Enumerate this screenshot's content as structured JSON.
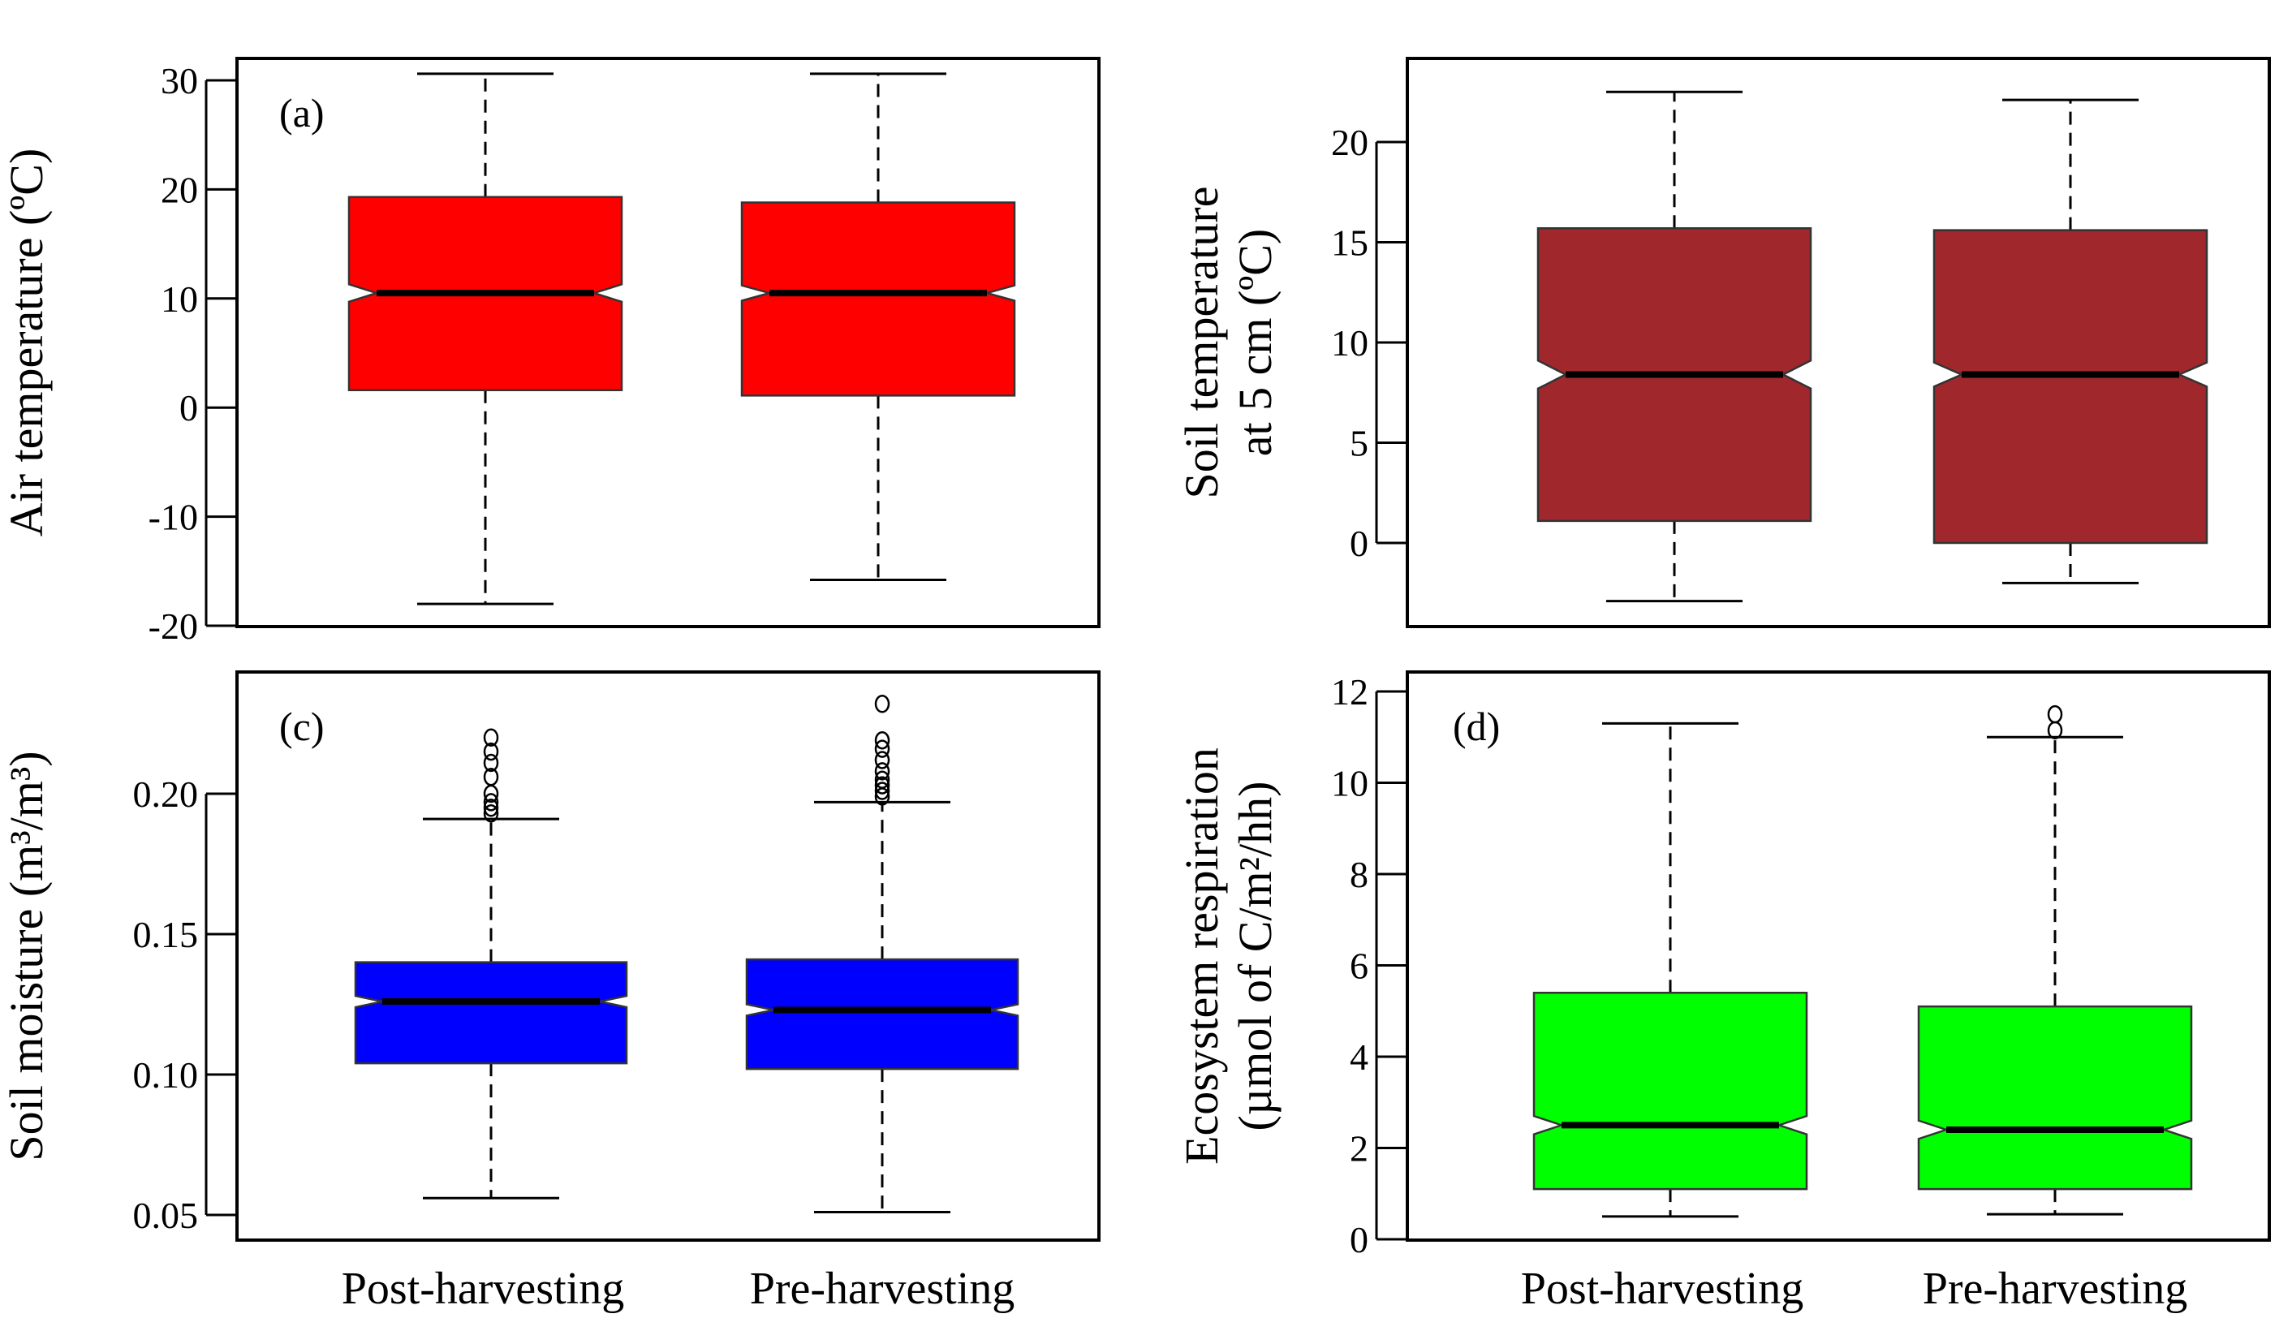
{
  "chart_data": [
    {
      "id": "a",
      "type": "boxplot",
      "panel_label": "(a)",
      "ylabel": "Air temperature (ºC)",
      "ylim": [
        -20,
        32
      ],
      "yticks": [
        -20,
        -10,
        0,
        10,
        20,
        30
      ],
      "tick_labels": [
        "-20",
        "-10",
        "0",
        "10",
        "20",
        "30"
      ],
      "fill": "#ff0000",
      "categories": [
        "Post-harvesting",
        "Pre-harvesting"
      ],
      "boxes": [
        {
          "whisker_low": -18,
          "q1": 1.6,
          "median": 10.5,
          "q3": 19.3,
          "whisker_high": 30.6,
          "notch_low": 9.7,
          "notch_high": 11.3,
          "outliers": []
        },
        {
          "whisker_low": -15.8,
          "q1": 1.1,
          "median": 10.5,
          "q3": 18.8,
          "whisker_high": 30.6,
          "notch_low": 9.8,
          "notch_high": 11.2,
          "outliers": []
        }
      ]
    },
    {
      "id": "b",
      "type": "boxplot",
      "panel_label": "",
      "ylabel_lines": [
        "Soil temperature",
        "at 5 cm (ºC)"
      ],
      "ylim": [
        -4,
        24.5
      ],
      "yticks": [
        0,
        5,
        10,
        15,
        20
      ],
      "tick_labels": [
        "0",
        "5",
        "10",
        "15",
        "20"
      ],
      "fill": "#a0282c",
      "categories": [
        "Post-harvesting",
        "Pre-harvesting"
      ],
      "boxes": [
        {
          "whisker_low": -2.9,
          "q1": 1.1,
          "median": 8.4,
          "q3": 15.7,
          "whisker_high": 22.5,
          "notch_low": 7.7,
          "notch_high": 9.1,
          "outliers": []
        },
        {
          "whisker_low": -2.0,
          "q1": 0.0,
          "median": 8.4,
          "q3": 15.6,
          "whisker_high": 22.1,
          "notch_low": 7.8,
          "notch_high": 9.0,
          "outliers": []
        }
      ]
    },
    {
      "id": "c",
      "type": "boxplot",
      "panel_label": "(c)",
      "ylabel": "Soil moisture (m³/m³)",
      "ylim": [
        0.042,
        0.245
      ],
      "yticks": [
        0.05,
        0.1,
        0.15,
        0.2
      ],
      "tick_labels": [
        "0.05",
        "0.10",
        "0.15",
        "0.20"
      ],
      "fill": "#0000ff",
      "categories": [
        "Post-harvesting",
        "Pre-harvesting"
      ],
      "boxes": [
        {
          "whisker_low": 0.056,
          "q1": 0.104,
          "median": 0.126,
          "q3": 0.14,
          "whisker_high": 0.191,
          "notch_low": 0.124,
          "notch_high": 0.128,
          "outliers": [
            0.193,
            0.195,
            0.197,
            0.2,
            0.206,
            0.211,
            0.215,
            0.22
          ]
        },
        {
          "whisker_low": 0.051,
          "q1": 0.102,
          "median": 0.123,
          "q3": 0.141,
          "whisker_high": 0.197,
          "notch_low": 0.121,
          "notch_high": 0.125,
          "outliers": [
            0.199,
            0.201,
            0.203,
            0.205,
            0.208,
            0.212,
            0.216,
            0.219,
            0.232
          ]
        }
      ]
    },
    {
      "id": "d",
      "type": "boxplot",
      "panel_label": "(d)",
      "ylabel_lines": [
        "Ecosystem respiration",
        "(µmol of C/m²/hh)"
      ],
      "ylim": [
        0,
        12.7
      ],
      "yticks": [
        0,
        2,
        4,
        6,
        8,
        10,
        12
      ],
      "tick_labels": [
        "0",
        "2",
        "4",
        "6",
        "8",
        "10",
        "12"
      ],
      "fill": "#00ff00",
      "categories": [
        "Post-harvesting",
        "Pre-harvesting"
      ],
      "boxes": [
        {
          "whisker_low": 0.5,
          "q1": 1.1,
          "median": 2.5,
          "q3": 5.4,
          "whisker_high": 11.3,
          "notch_low": 2.3,
          "notch_high": 2.7,
          "outliers": []
        },
        {
          "whisker_low": 0.55,
          "q1": 1.1,
          "median": 2.4,
          "q3": 5.1,
          "whisker_high": 11.0,
          "notch_low": 2.2,
          "notch_high": 2.6,
          "outliers": [
            11.15,
            11.5
          ]
        }
      ]
    }
  ]
}
